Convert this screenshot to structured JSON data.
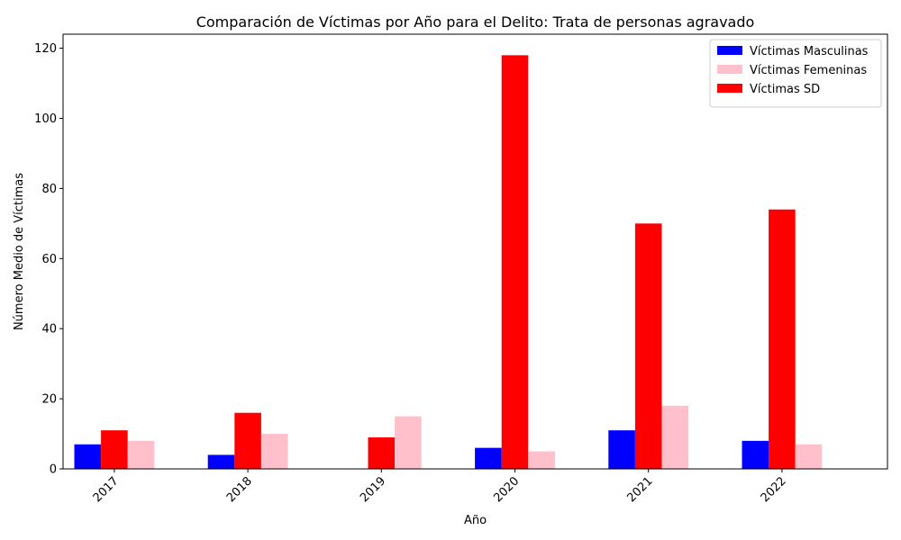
{
  "chart_data": {
    "type": "bar",
    "title": "Comparación de Víctimas por Año para el Delito: Trata de personas agravado",
    "xlabel": "Año",
    "ylabel": "Número Medio de Víctimas",
    "categories": [
      "2017",
      "2018",
      "2019",
      "2020",
      "2021",
      "2022"
    ],
    "series": [
      {
        "name": "Víctimas Masculinas",
        "color": "#0000ff",
        "values": [
          7,
          4,
          0,
          6,
          11,
          8
        ]
      },
      {
        "name": "Víctimas SD",
        "color": "#ff0000",
        "values": [
          11,
          16,
          9,
          118,
          70,
          74
        ]
      },
      {
        "name": "Víctimas Femeninas",
        "color": "#ffc0cb",
        "values": [
          8,
          10,
          15,
          5,
          18,
          7
        ]
      }
    ],
    "legend_order": [
      "Víctimas Masculinas",
      "Víctimas Femeninas",
      "Víctimas SD"
    ],
    "ylim": [
      0,
      124
    ],
    "yticks": [
      0,
      20,
      40,
      60,
      80,
      100,
      120
    ],
    "legend_position": "top-right",
    "grid": false
  }
}
